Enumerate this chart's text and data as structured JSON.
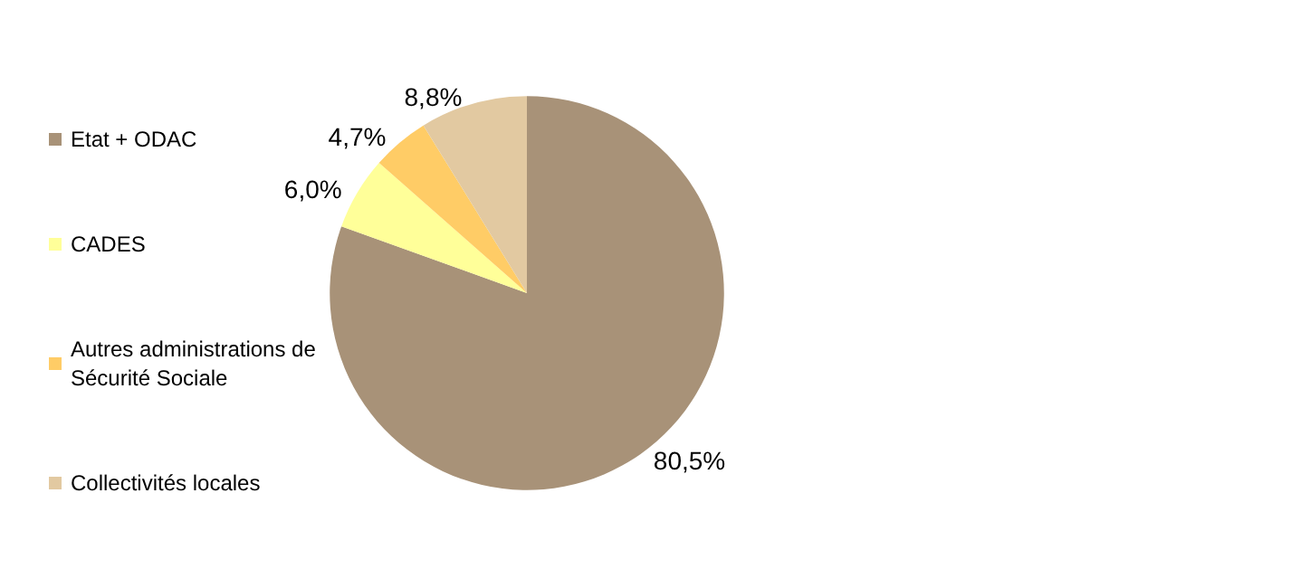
{
  "chart_data": {
    "type": "pie",
    "categories": [
      "Etat + ODAC",
      "CADES",
      "Autres administrations de Sécurité Sociale",
      "Collectivités locales"
    ],
    "values": [
      80.5,
      6.0,
      4.7,
      8.8
    ],
    "colors": [
      "#a89278",
      "#ffff99",
      "#ffcc66",
      "#e2c9a1"
    ],
    "value_labels": [
      "80,5%",
      "6,0%",
      "4,7%",
      "8,8%"
    ],
    "legend": "left"
  }
}
